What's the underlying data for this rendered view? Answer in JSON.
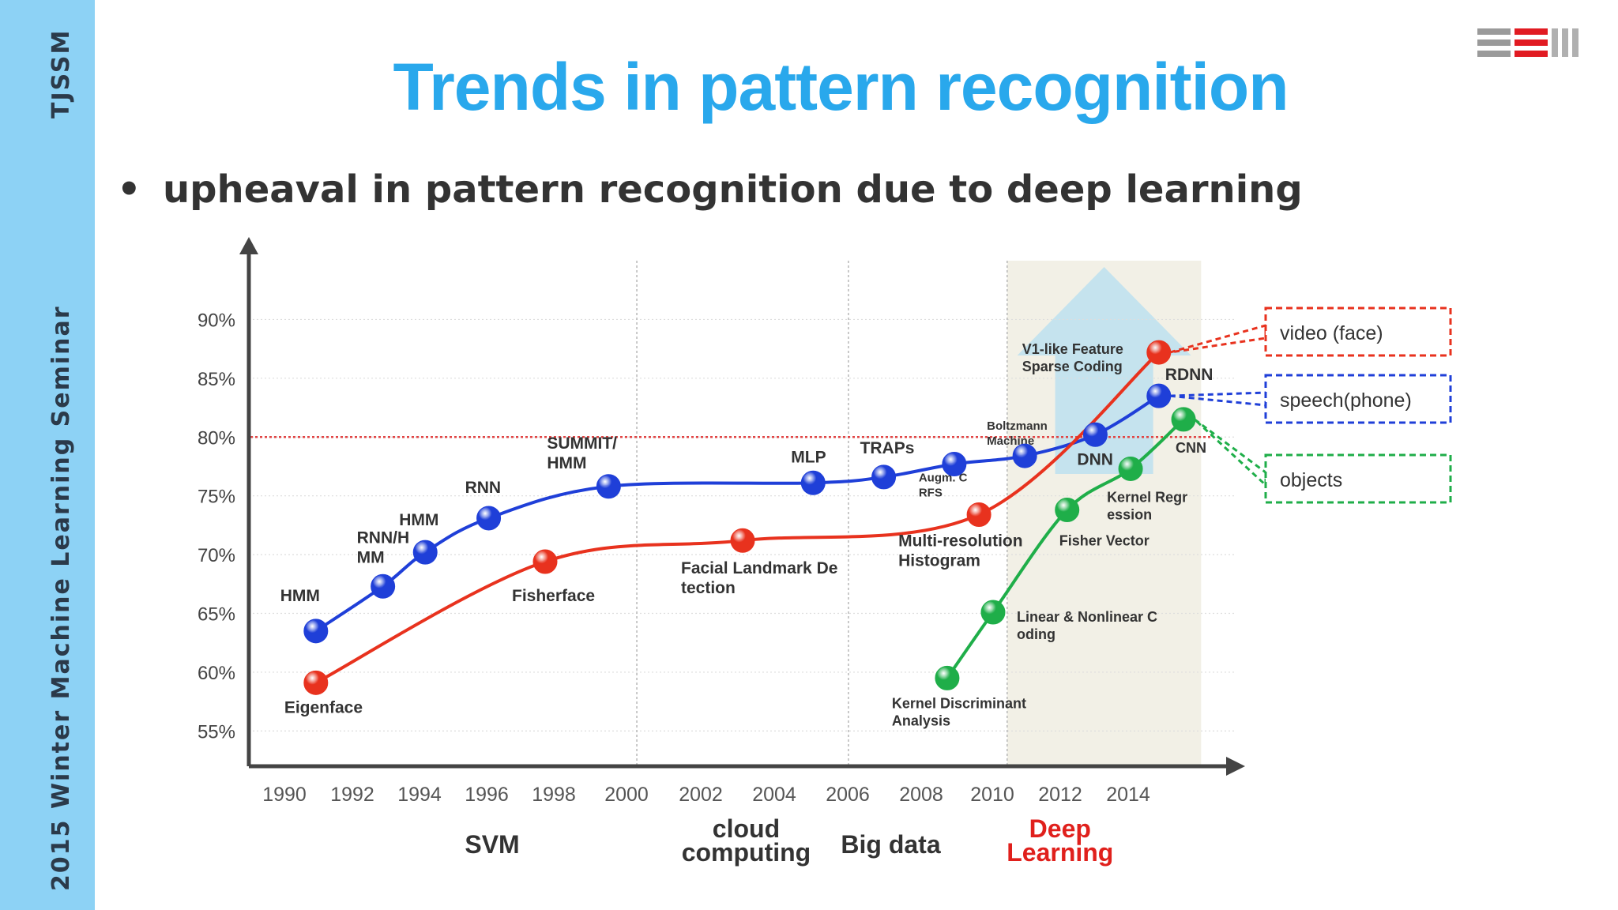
{
  "sidebar": {
    "org": "TJSSM",
    "event": "2015  Winter  Machine Learning Seminar"
  },
  "slide": {
    "title": "Trends in pattern recognition",
    "bullet": "upheaval in pattern recognition due to deep learning",
    "bullet_marker": "•"
  },
  "colors": {
    "sidebar": "#8dd2f5",
    "title": "#29a8ec",
    "speech_series": "#1f3fd8",
    "face_series": "#e8321e",
    "objects_series": "#1fae49",
    "threshold_line": "#e04444",
    "deep_learning_label": "#e0201c"
  },
  "chart_data": {
    "type": "line",
    "xlim": [
      1989,
      2017
    ],
    "ylim": [
      52,
      95
    ],
    "x_ticks": [
      "1990",
      "1992",
      "1994",
      "1996",
      "1998",
      "2000",
      "2002",
      "2004",
      "2006",
      "2008",
      "2010",
      "2012",
      "2014"
    ],
    "y_ticks": [
      "90%",
      "85%",
      "80%",
      "75%",
      "70%",
      "65%",
      "60%",
      "55%"
    ],
    "y_tick_values": [
      90,
      85,
      80,
      75,
      70,
      65,
      60,
      55
    ],
    "threshold": 80,
    "grid": true,
    "era_dividers": [
      2000,
      2006,
      2010.5
    ],
    "deep_learning_region": [
      2010.5,
      2016
    ],
    "series": [
      {
        "key": "speech",
        "legend": "speech(phone)",
        "color": "#1f3fd8",
        "points": [
          {
            "x": 1990.9,
            "y": 63.5,
            "label": "HMM"
          },
          {
            "x": 1992.8,
            "y": 67.3,
            "label": "RNN/H\nMM"
          },
          {
            "x": 1994.0,
            "y": 70.2,
            "label": "HMM"
          },
          {
            "x": 1995.8,
            "y": 73.1,
            "label": "RNN"
          },
          {
            "x": 1999.2,
            "y": 75.8,
            "label": "SUMMIT/\nHMM"
          },
          {
            "x": 2005.0,
            "y": 76.1,
            "label": "MLP"
          },
          {
            "x": 2007.0,
            "y": 76.6,
            "label": "TRAPs"
          },
          {
            "x": 2009.0,
            "y": 77.7,
            "label": "Augm. C\nRFS"
          },
          {
            "x": 2011.0,
            "y": 78.4,
            "label": "Boltzmann\nMachine"
          },
          {
            "x": 2013.0,
            "y": 80.2,
            "label": "DNN"
          },
          {
            "x": 2014.8,
            "y": 83.5,
            "label": "RDNN"
          }
        ]
      },
      {
        "key": "face",
        "legend": "video (face)",
        "color": "#e8321e",
        "points": [
          {
            "x": 1990.9,
            "y": 59.1,
            "label": "Eigenface"
          },
          {
            "x": 1997.4,
            "y": 69.4,
            "label": "Fisherface"
          },
          {
            "x": 2003.0,
            "y": 71.2,
            "label": "Facial Landmark De\ntection"
          },
          {
            "x": 2009.7,
            "y": 73.4,
            "label": "Multi-resolution\nHistogram"
          },
          {
            "x": 2014.8,
            "y": 87.2,
            "label": "V1-like Feature\nSparse Coding"
          }
        ]
      },
      {
        "key": "objects",
        "legend": "objects",
        "color": "#1fae49",
        "points": [
          {
            "x": 2008.8,
            "y": 59.5,
            "label": "Kernel Discriminant\nAnalysis"
          },
          {
            "x": 2010.1,
            "y": 65.1,
            "label": "Linear & Nonlinear C\noding"
          },
          {
            "x": 2012.2,
            "y": 73.8,
            "label": "Fisher Vector"
          },
          {
            "x": 2014.0,
            "y": 77.3,
            "label": "Kernel Regr\nession"
          },
          {
            "x": 2015.5,
            "y": 81.5,
            "label": "CNN"
          }
        ]
      }
    ],
    "era_labels": [
      {
        "text": "SVM",
        "x": 1995.9,
        "color": "#333333"
      },
      {
        "text": "cloud\ncomputing",
        "x": 2003.1,
        "color": "#333333"
      },
      {
        "text": "Big data",
        "x": 2007.2,
        "color": "#333333"
      },
      {
        "text": "Deep\nLearning",
        "x": 2012.0,
        "color": "#e0201c"
      }
    ]
  }
}
